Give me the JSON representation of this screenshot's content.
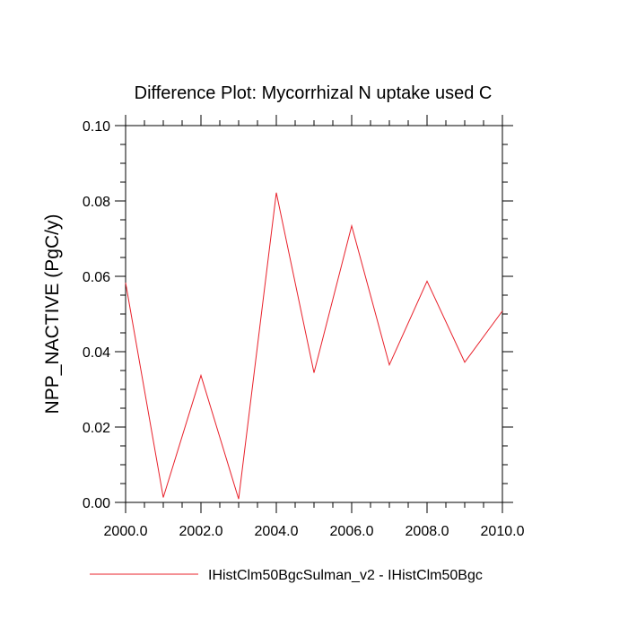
{
  "chart_data": {
    "type": "line",
    "title": "Difference Plot: Mycorrhizal N uptake used C",
    "xlabel": "",
    "ylabel": "NPP_NACTIVE  (PgC/y)",
    "xlim": [
      2000,
      2010
    ],
    "ylim": [
      0,
      0.1
    ],
    "x_ticks": [
      2000,
      2002,
      2004,
      2006,
      2008,
      2010
    ],
    "x_tick_labels": [
      "2000.0",
      "2002.0",
      "2004.0",
      "2006.0",
      "2008.0",
      "2010.0"
    ],
    "y_ticks": [
      0,
      0.02,
      0.04,
      0.06,
      0.08,
      0.1
    ],
    "y_tick_labels": [
      "0.00",
      "0.02",
      "0.04",
      "0.06",
      "0.08",
      "0.10"
    ],
    "grid": false,
    "legend_position": "bottom",
    "series": [
      {
        "name": "IHistClm50BgcSulman_v2 - IHistClm50Bgc",
        "color": "#e8202a",
        "x": [
          2000,
          2001,
          2002,
          2003,
          2004,
          2005,
          2006,
          2007,
          2008,
          2009,
          2010
        ],
        "y": [
          0.0583,
          0.0013,
          0.0337,
          0.0009,
          0.0822,
          0.0344,
          0.0734,
          0.0365,
          0.0587,
          0.0372,
          0.0508
        ]
      }
    ]
  }
}
